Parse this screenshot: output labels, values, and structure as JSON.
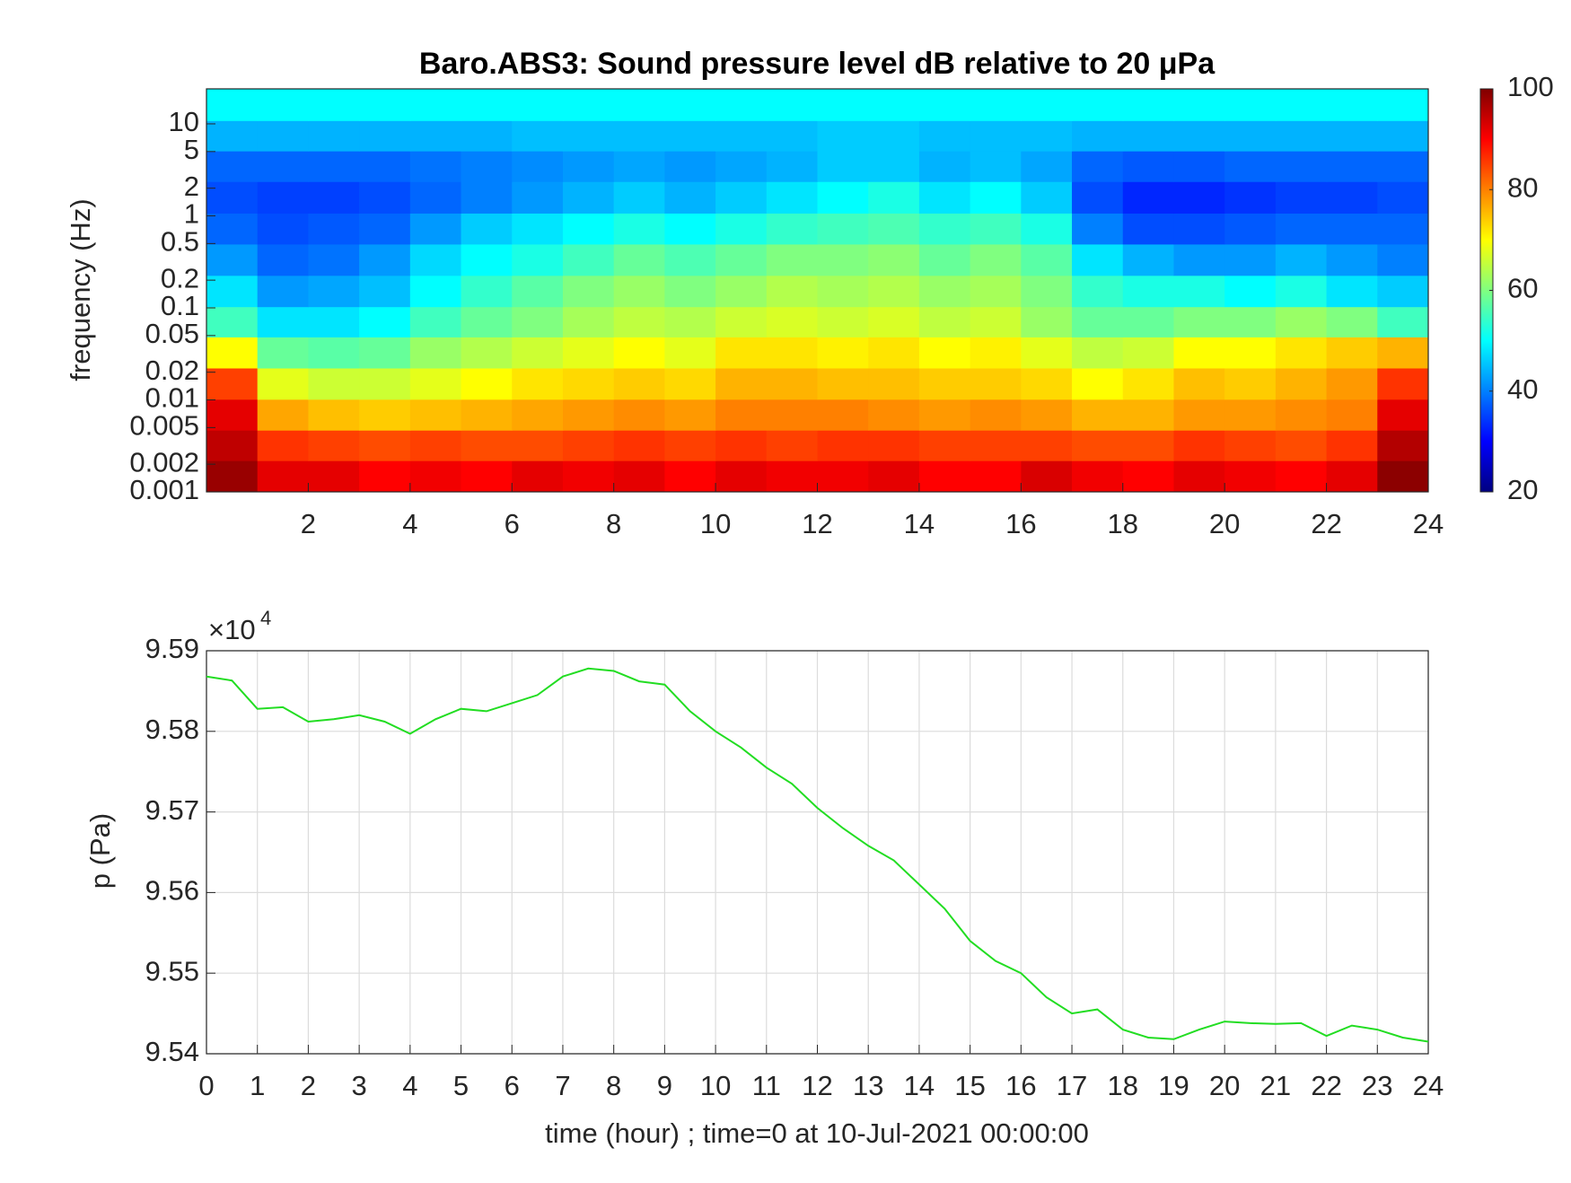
{
  "chart_data": [
    {
      "type": "heatmap",
      "title": "Baro.ABS3: Sound pressure level dB relative to 20 μPa",
      "ylabel": "frequency (Hz)",
      "x": [
        0.5,
        1.5,
        2.5,
        3.5,
        4.5,
        5.5,
        6.5,
        7.5,
        8.5,
        9.5,
        10.5,
        11.5,
        12.5,
        13.5,
        14.5,
        15.5,
        16.5,
        17.5,
        18.5,
        19.5,
        20.5,
        21.5,
        22.5,
        23.5
      ],
      "y": [
        0.0015,
        0.0032,
        0.0069,
        0.015,
        0.033,
        0.071,
        0.15,
        0.34,
        0.72,
        1.6,
        3.5,
        7.4,
        16
      ],
      "values": [
        [
          98,
          92,
          92,
          90,
          91,
          90,
          92,
          91,
          92,
          90,
          92,
          91,
          91,
          92,
          90,
          90,
          93,
          91,
          90,
          92,
          91,
          90,
          92,
          99
        ],
        [
          95,
          86,
          85,
          84,
          85,
          84,
          84,
          85,
          86,
          85,
          86,
          85,
          86,
          86,
          85,
          85,
          85,
          84,
          84,
          86,
          85,
          84,
          86,
          96
        ],
        [
          92,
          77,
          75,
          74,
          75,
          76,
          77,
          78,
          79,
          78,
          80,
          80,
          80,
          79,
          78,
          79,
          78,
          76,
          76,
          78,
          78,
          79,
          80,
          92
        ],
        [
          85,
          68,
          66,
          66,
          68,
          70,
          72,
          73,
          74,
          73,
          76,
          76,
          75,
          75,
          74,
          74,
          73,
          70,
          72,
          75,
          74,
          76,
          78,
          86
        ],
        [
          70,
          58,
          57,
          58,
          62,
          64,
          66,
          68,
          70,
          68,
          72,
          72,
          71,
          72,
          70,
          71,
          68,
          65,
          66,
          70,
          70,
          72,
          74,
          76
        ],
        [
          55,
          48,
          48,
          50,
          55,
          58,
          60,
          63,
          65,
          64,
          66,
          67,
          66,
          67,
          65,
          66,
          62,
          58,
          58,
          60,
          60,
          62,
          60,
          55
        ],
        [
          48,
          42,
          43,
          45,
          50,
          54,
          57,
          60,
          62,
          60,
          62,
          64,
          63,
          64,
          62,
          63,
          60,
          54,
          52,
          52,
          50,
          52,
          48,
          46
        ],
        [
          42,
          38,
          39,
          42,
          47,
          50,
          52,
          55,
          58,
          56,
          58,
          60,
          60,
          61,
          58,
          60,
          57,
          48,
          44,
          42,
          42,
          44,
          42,
          40
        ],
        [
          38,
          36,
          37,
          38,
          42,
          46,
          48,
          50,
          52,
          50,
          52,
          54,
          55,
          56,
          54,
          55,
          52,
          40,
          36,
          36,
          37,
          38,
          38,
          38
        ],
        [
          36,
          35,
          35,
          36,
          38,
          40,
          42,
          44,
          46,
          44,
          46,
          48,
          50,
          52,
          48,
          50,
          46,
          36,
          33,
          33,
          34,
          35,
          35,
          36
        ],
        [
          38,
          38,
          38,
          38,
          39,
          40,
          41,
          42,
          43,
          42,
          43,
          44,
          46,
          46,
          44,
          45,
          43,
          38,
          37,
          37,
          38,
          38,
          38,
          38
        ],
        [
          44,
          44,
          44,
          44,
          44,
          44,
          45,
          45,
          45,
          45,
          45,
          45,
          46,
          46,
          45,
          45,
          45,
          44,
          44,
          44,
          44,
          44,
          44,
          44
        ],
        [
          50,
          50,
          50,
          50,
          50,
          50,
          50,
          50,
          50,
          50,
          50,
          50,
          50,
          50,
          50,
          50,
          50,
          50,
          50,
          50,
          50,
          50,
          50,
          50
        ]
      ],
      "xlim": [
        0,
        24
      ],
      "xticks": [
        2,
        4,
        6,
        8,
        10,
        12,
        14,
        16,
        18,
        20,
        22,
        24
      ],
      "ylim": [
        0.001,
        24
      ],
      "ylog": true,
      "yticks": [
        0.001,
        0.002,
        0.005,
        0.01,
        0.02,
        0.05,
        0.1,
        0.2,
        0.5,
        1,
        2,
        5,
        10
      ],
      "colormap": "jet",
      "clim": [
        20,
        100
      ],
      "cticks": [
        20,
        40,
        60,
        80,
        100
      ]
    },
    {
      "type": "line",
      "xlabel": "time (hour) ; time=0 at 10-Jul-2021 00:00:00",
      "ylabel": "p (Pa)",
      "y_exponent_base": "×10",
      "y_exponent": "4",
      "color": "#22dd22",
      "x": [
        0,
        0.5,
        1,
        1.5,
        2,
        2.5,
        3,
        3.5,
        4,
        4.5,
        5,
        5.5,
        6,
        6.5,
        7,
        7.5,
        8,
        8.5,
        9,
        9.5,
        10,
        10.5,
        11,
        11.5,
        12,
        12.5,
        13,
        13.5,
        14,
        14.5,
        15,
        15.5,
        16,
        16.5,
        17,
        17.5,
        18,
        18.5,
        19,
        19.5,
        20,
        20.5,
        21,
        21.5,
        22,
        22.5,
        23,
        23.5,
        24
      ],
      "values": [
        95868,
        95863,
        95828,
        95830,
        95812,
        95815,
        95820,
        95812,
        95797,
        95815,
        95828,
        95825,
        95835,
        95845,
        95868,
        95878,
        95875,
        95862,
        95858,
        95825,
        95800,
        95780,
        95755,
        95735,
        95705,
        95680,
        95658,
        95640,
        95610,
        95580,
        95540,
        95515,
        95500,
        95470,
        95450,
        95455,
        95430,
        95420,
        95418,
        95430,
        95440,
        95438,
        95437,
        95438,
        95422,
        95435,
        95430,
        95420,
        95415
      ],
      "xlim": [
        0,
        24
      ],
      "xticks": [
        0,
        1,
        2,
        3,
        4,
        5,
        6,
        7,
        8,
        9,
        10,
        11,
        12,
        13,
        14,
        15,
        16,
        17,
        18,
        19,
        20,
        21,
        22,
        23,
        24
      ],
      "ylim": [
        95400,
        95900
      ],
      "yticks": [
        {
          "value": 95400,
          "label": "9.54"
        },
        {
          "value": 95500,
          "label": "9.55"
        },
        {
          "value": 95600,
          "label": "9.56"
        },
        {
          "value": 95700,
          "label": "9.57"
        },
        {
          "value": 95800,
          "label": "9.58"
        },
        {
          "value": 95900,
          "label": "9.59"
        }
      ],
      "grid": true
    }
  ]
}
